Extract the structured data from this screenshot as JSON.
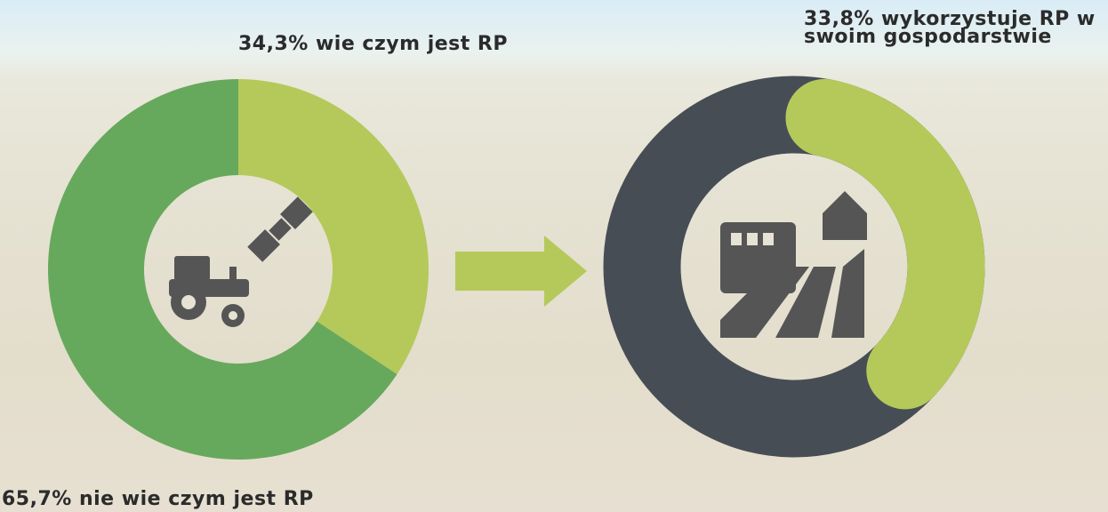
{
  "chart_data": [
    {
      "type": "donut",
      "values": [
        34.3,
        65.7
      ],
      "value_labels": [
        "34,3% wie czym jest RP",
        "65,7% nie wie czym jest RP"
      ],
      "colors": [
        "#b5c95a",
        "#67a95c"
      ]
    },
    {
      "type": "donut-arc",
      "values": [
        33.8
      ],
      "value_labels": [
        "33,8% wykorzystuje RP w swoim gospodarstwie"
      ],
      "colors": [
        "#b5c95a"
      ],
      "track_color": "#474d54"
    }
  ]
}
